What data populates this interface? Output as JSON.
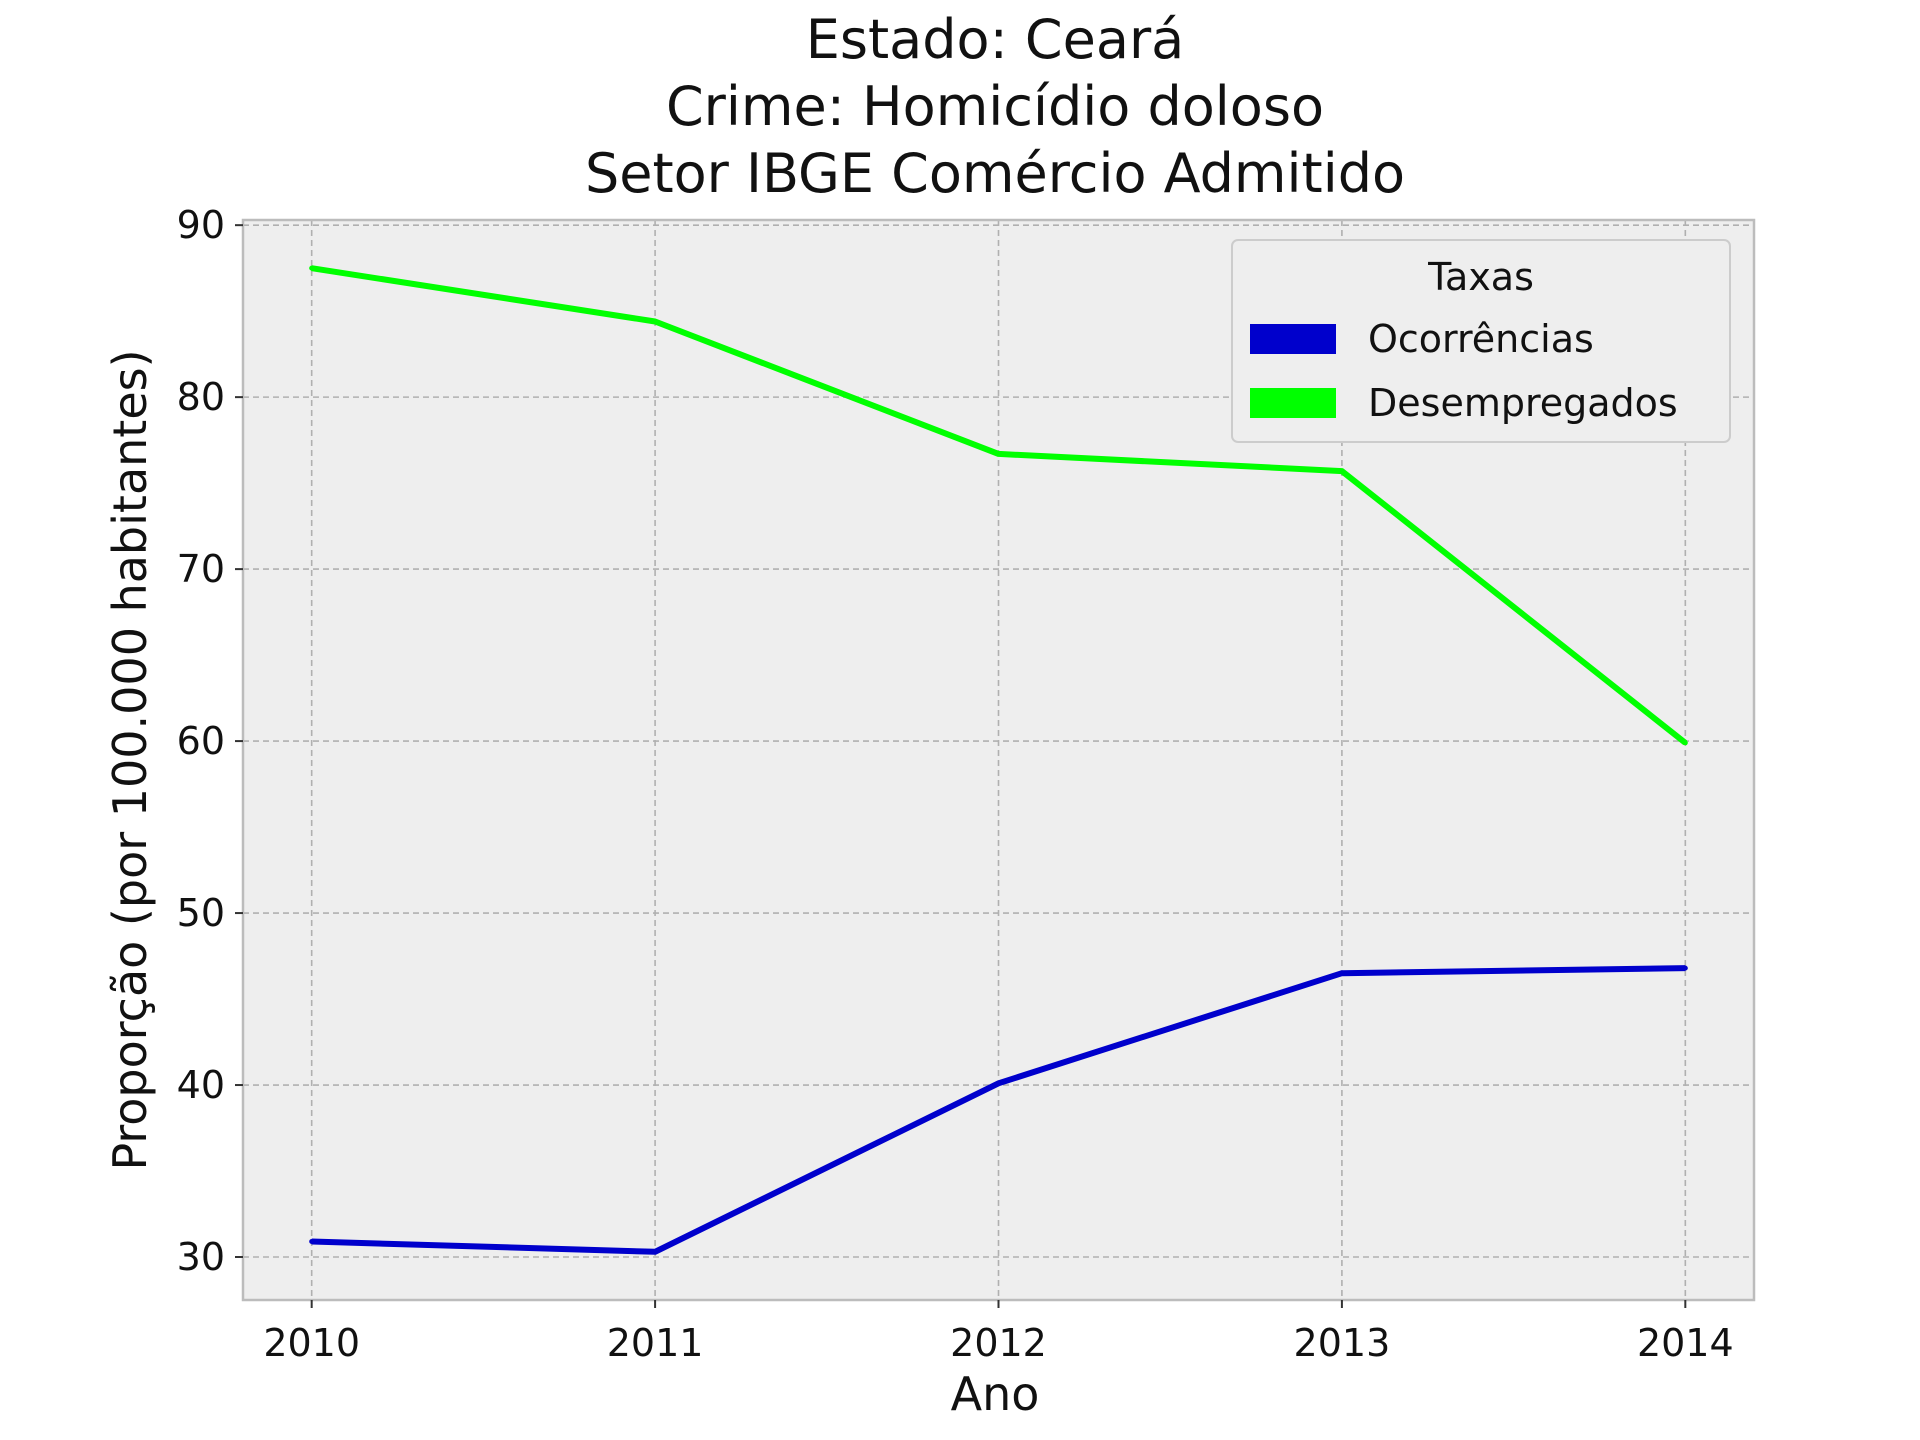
{
  "chart_data": {
    "type": "line",
    "title_lines": [
      "Estado: Ceará",
      "Crime: Homicídio doloso",
      "Setor IBGE  Comércio   Admitido"
    ],
    "xlabel": "Ano",
    "ylabel": "Proporção (por 100.000 habitantes)",
    "x": [
      2010,
      2011,
      2012,
      2013,
      2014
    ],
    "x_tick_labels": [
      "2010",
      "2011",
      "2012",
      "2013",
      "2014"
    ],
    "y_ticks": [
      30,
      40,
      50,
      60,
      70,
      80,
      90
    ],
    "y_tick_labels": [
      "30",
      "40",
      "50",
      "60",
      "70",
      "80",
      "90"
    ],
    "xlim": [
      2009.8,
      2014.2
    ],
    "ylim": [
      27.5,
      90.3
    ],
    "grid": true,
    "legend_title": "Taxas",
    "legend_position": "top-right",
    "series": [
      {
        "name": "Ocorrências",
        "color": "#0000cc",
        "values": [
          30.9,
          30.3,
          40.1,
          46.5,
          46.8
        ]
      },
      {
        "name": "Desempregados",
        "color": "#00ff00",
        "values": [
          87.5,
          84.4,
          76.7,
          75.7,
          59.9
        ]
      }
    ]
  }
}
